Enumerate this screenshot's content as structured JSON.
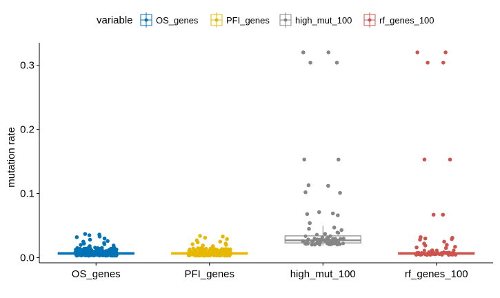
{
  "chart_data": {
    "type": "box",
    "ylabel": "mutation rate",
    "xlabel": "",
    "ylim": [
      -0.008,
      0.335
    ],
    "yticks": [
      0.0,
      0.1,
      0.2,
      0.3
    ],
    "ytick_labels": [
      "0.0",
      "0.1",
      "0.2",
      "0.3"
    ],
    "grid": false,
    "legend": {
      "title": "variable",
      "position": "top",
      "entries": [
        "OS_genes",
        "PFI_genes",
        "high_mut_100",
        "rf_genes_100"
      ]
    },
    "categories": [
      "OS_genes",
      "PFI_genes",
      "high_mut_100",
      "rf_genes_100"
    ],
    "series": [
      {
        "name": "OS_genes",
        "color": "#0072B5",
        "box": {
          "q1": 0.006,
          "median": 0.007,
          "q3": 0.008,
          "whisker_low": 0.004,
          "whisker_high": 0.012
        },
        "jitter_count": 320,
        "jitter_range": [
          0.003,
          0.016
        ],
        "outliers": [
          0.037,
          0.036,
          0.035,
          0.033,
          0.032,
          0.03,
          0.028,
          0.026,
          0.025,
          0.023,
          0.022,
          0.021,
          0.02,
          0.019,
          0.018
        ]
      },
      {
        "name": "PFI_genes",
        "color": "#E7B800",
        "box": {
          "q1": 0.006,
          "median": 0.007,
          "q3": 0.008,
          "whisker_low": 0.004,
          "whisker_high": 0.012
        },
        "jitter_count": 320,
        "jitter_range": [
          0.003,
          0.015
        ],
        "outliers": [
          0.034,
          0.033,
          0.031,
          0.029,
          0.027,
          0.025,
          0.024,
          0.022,
          0.021,
          0.02,
          0.019,
          0.018
        ]
      },
      {
        "name": "high_mut_100",
        "color": "#868686",
        "box": {
          "q1": 0.023,
          "median": 0.027,
          "q3": 0.034,
          "whisker_low": 0.019,
          "whisker_high": 0.05
        },
        "jitter_count": 70,
        "jitter_range": [
          0.02,
          0.04
        ],
        "outliers": [
          0.32,
          0.32,
          0.304,
          0.304,
          0.153,
          0.153,
          0.113,
          0.112,
          0.102,
          0.101,
          0.071,
          0.069,
          0.068,
          0.066,
          0.054,
          0.047,
          0.045,
          0.043
        ]
      },
      {
        "name": "rf_genes_100",
        "color": "#CD534C",
        "box": {
          "q1": 0.006,
          "median": 0.007,
          "q3": 0.008,
          "whisker_low": 0.004,
          "whisker_high": 0.011
        },
        "jitter_count": 60,
        "jitter_range": [
          0.004,
          0.012
        ],
        "outliers": [
          0.32,
          0.32,
          0.304,
          0.304,
          0.153,
          0.153,
          0.067,
          0.067,
          0.032,
          0.031,
          0.03,
          0.029,
          0.028,
          0.025,
          0.022,
          0.02,
          0.019,
          0.017,
          0.016,
          0.015
        ]
      }
    ]
  }
}
